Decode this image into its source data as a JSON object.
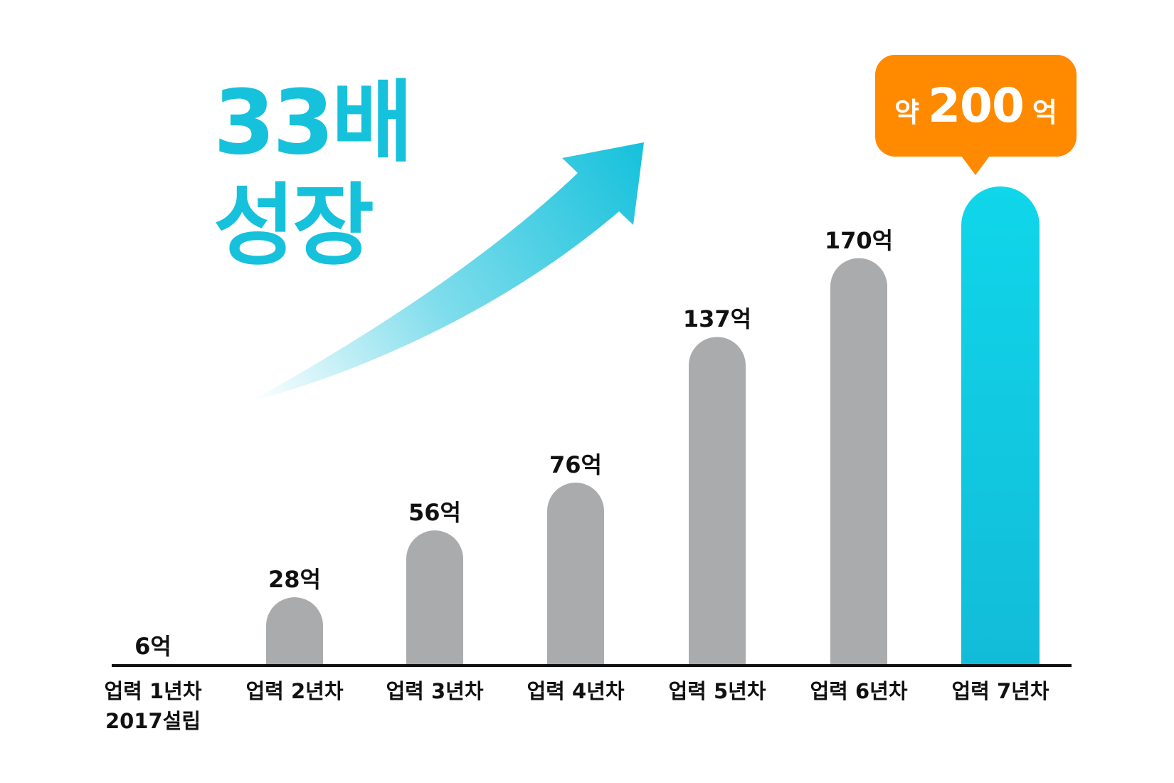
{
  "headline": {
    "line1": "33배",
    "line2": "성장"
  },
  "callout": {
    "prefix": "약",
    "value": "200",
    "unit": "억"
  },
  "colors": {
    "bar": "#aaabad",
    "highlight_top": "#10d6ea",
    "highlight_bottom": "#12bcd8",
    "arrow": "#16c1dc",
    "callout": "#ff8a00",
    "axis": "#111111"
  },
  "chart_data": {
    "type": "bar",
    "categories": [
      "업력 1년차\n2017설립",
      "업력 2년차",
      "업력 3년차",
      "업력 4년차",
      "업력 5년차",
      "업력 6년차",
      "업력 7년차"
    ],
    "values": [
      6,
      28,
      56,
      76,
      137,
      170,
      200
    ],
    "value_labels": [
      "6억",
      "28억",
      "56억",
      "76억",
      "137억",
      "170억",
      ""
    ],
    "highlight_index": 6,
    "ylim": [
      0,
      200
    ],
    "grid": false,
    "legend": "none"
  }
}
